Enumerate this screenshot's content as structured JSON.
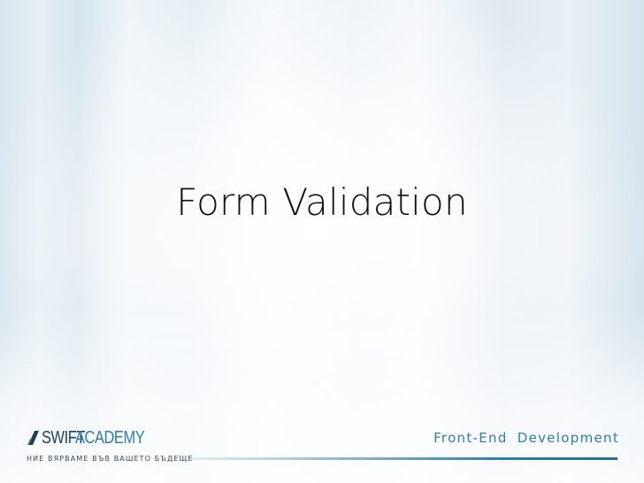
{
  "slide": {
    "title": "Form Validation"
  },
  "footer": {
    "logo": {
      "part1": "SWIFT",
      "part2": "ACADEMY",
      "tagline": "НИЕ ВЯРВАМЕ ВЪВ ВАШЕТО БЪДЕЩЕ"
    },
    "course_name": "Front-End Development"
  },
  "colors": {
    "accent": "#2d7ea8",
    "logo_dark": "#1f3d5a",
    "title_text": "#111111"
  },
  "icons": {
    "logo_mark": "swift-academy-logo-icon"
  }
}
